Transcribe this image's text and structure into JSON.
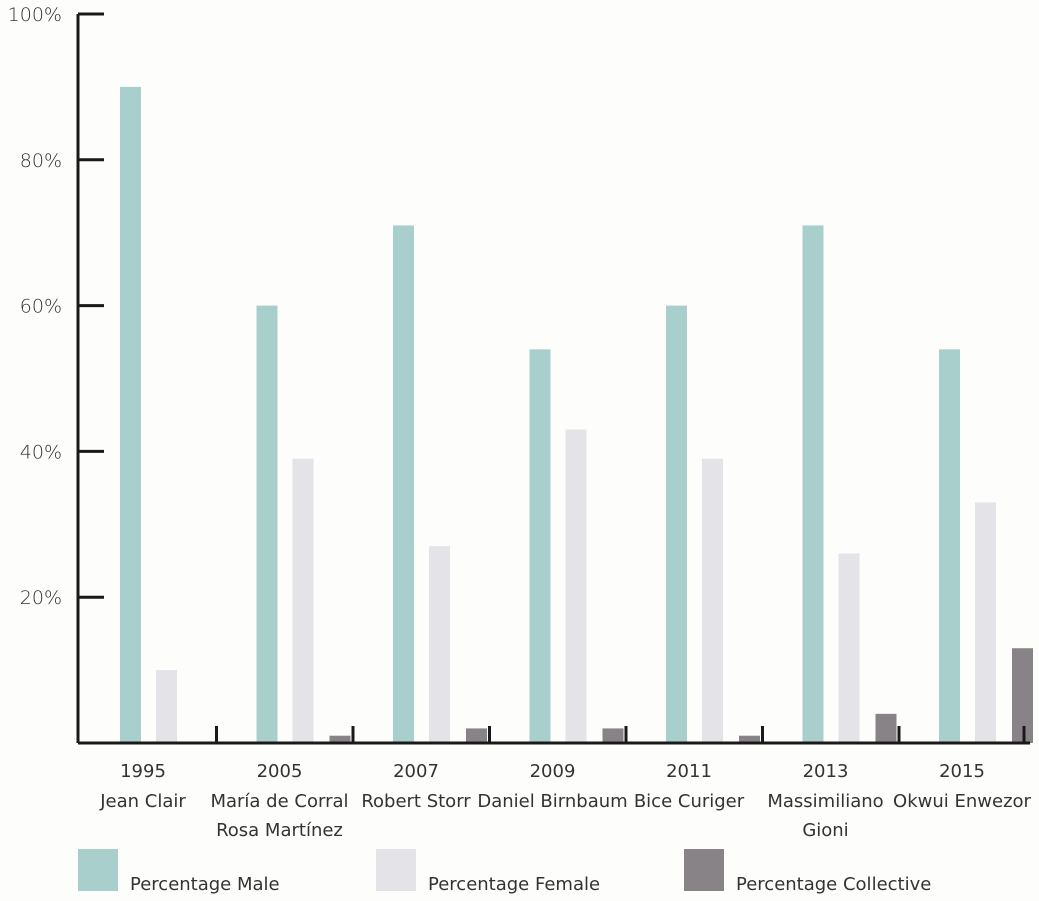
{
  "chart_data": {
    "type": "bar",
    "title": "",
    "xlabel": "",
    "ylabel": "",
    "ylim": [
      0,
      100
    ],
    "y_ticks": [
      {
        "value": 20,
        "label": "20%"
      },
      {
        "value": 40,
        "label": "40%"
      },
      {
        "value": 60,
        "label": "60%"
      },
      {
        "value": 80,
        "label": "80%"
      },
      {
        "value": 100,
        "label": "100%"
      }
    ],
    "categories": [
      {
        "year": "1995",
        "curator": [
          "Jean Clair"
        ]
      },
      {
        "year": "2005",
        "curator": [
          "María de Corral",
          "Rosa Martínez"
        ]
      },
      {
        "year": "2007",
        "curator": [
          "Robert Storr"
        ]
      },
      {
        "year": "2009",
        "curator": [
          "Daniel Birnbaum"
        ]
      },
      {
        "year": "2011",
        "curator": [
          "Bice Curiger"
        ]
      },
      {
        "year": "2013",
        "curator": [
          "Massimiliano",
          "Gioni"
        ]
      },
      {
        "year": "2015",
        "curator": [
          "Okwui Enwezor"
        ]
      }
    ],
    "series": [
      {
        "name": "Percentage Male",
        "color": "#a9cfcd",
        "values": [
          90,
          60,
          71,
          54,
          60,
          71,
          54
        ]
      },
      {
        "name": "Percentage Female",
        "color": "#e4e4e8",
        "values": [
          10,
          39,
          27,
          43,
          39,
          26,
          33
        ]
      },
      {
        "name": "Percentage Collective",
        "color": "#878387",
        "values": [
          0,
          1,
          2,
          2,
          1,
          4,
          13
        ]
      }
    ],
    "grid": false,
    "legend_position": "bottom"
  }
}
